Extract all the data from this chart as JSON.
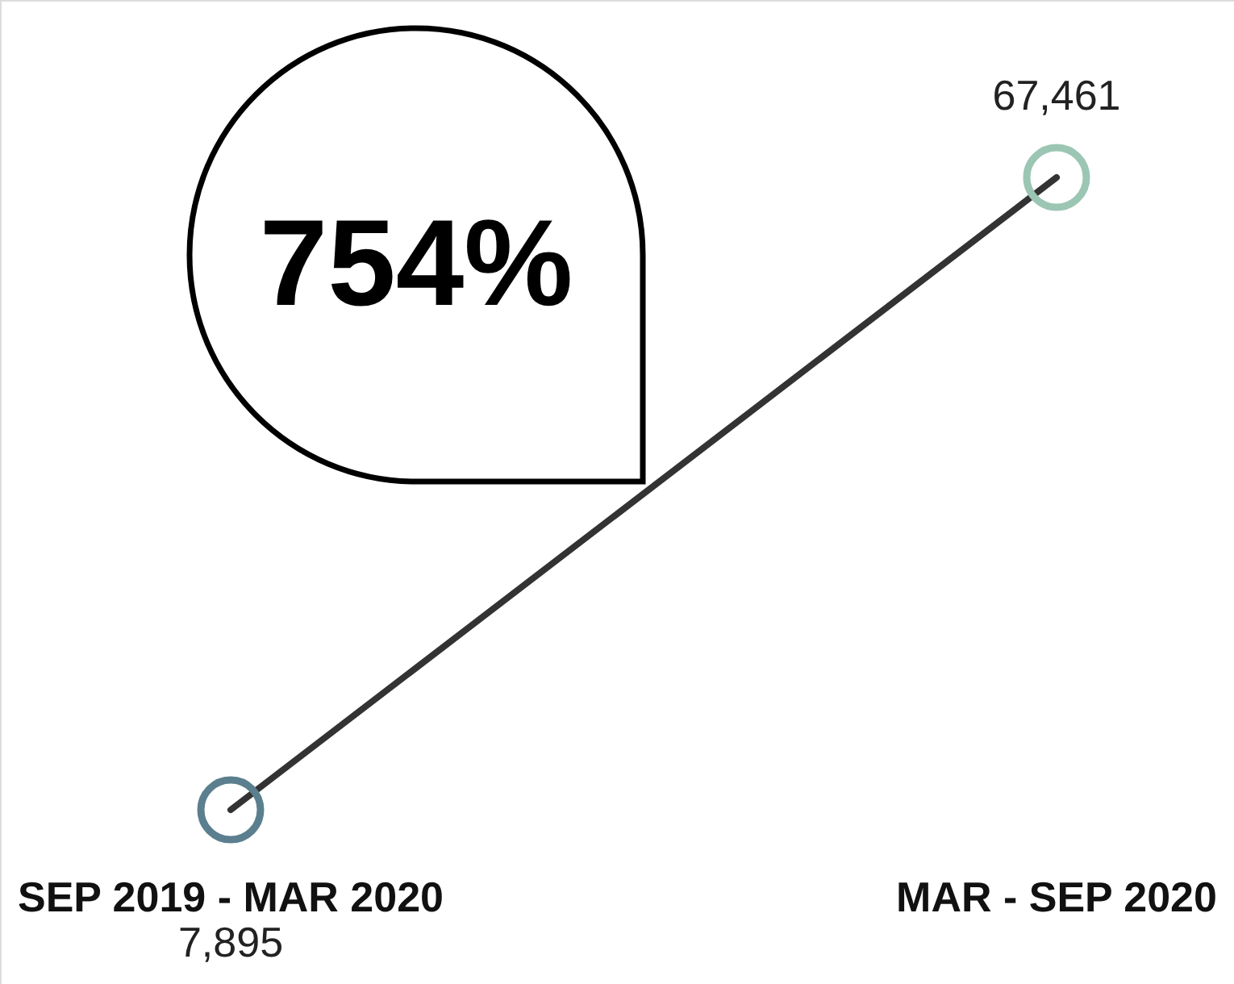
{
  "chart_data": {
    "type": "line",
    "categories": [
      "SEP 2019 - MAR 2020",
      "MAR - SEP 2020"
    ],
    "series": [
      {
        "color": "#333333",
        "colors": [
          "#5b7f8e",
          "#9bc6b4"
        ],
        "values": [
          7895,
          67461
        ],
        "value_labels": [
          "7,895",
          "67,461"
        ]
      }
    ],
    "marker": "circle",
    "line_style": "solid",
    "tick_labels": false,
    "annotations": [
      "754%"
    ]
  }
}
